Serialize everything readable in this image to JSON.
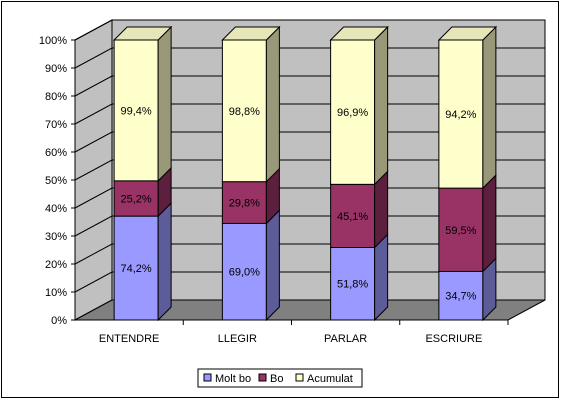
{
  "chart_data": {
    "type": "bar",
    "stacked": true,
    "three_d": true,
    "categories": [
      "ENTENDRE",
      "LLEGIR",
      "PARLAR",
      "ESCRIURE"
    ],
    "series": [
      {
        "name": "Molt bo",
        "values": [
          37.1,
          34.5,
          25.9,
          17.35
        ],
        "labels": [
          "74,2%",
          "69,0%",
          "51,8%",
          "34,7%"
        ]
      },
      {
        "name": "Bo",
        "values": [
          12.6,
          14.9,
          22.55,
          29.75
        ],
        "labels": [
          "25,2%",
          "29,8%",
          "45,1%",
          "59,5%"
        ]
      },
      {
        "name": "Acumulat",
        "values": [
          50.3,
          50.6,
          51.55,
          52.9
        ],
        "labels": [
          "99,4%",
          "98,8%",
          "96,9%",
          "94,2%"
        ]
      }
    ],
    "y_ticks": [
      "0%",
      "10%",
      "20%",
      "30%",
      "40%",
      "50%",
      "60%",
      "70%",
      "80%",
      "90%",
      "100%"
    ],
    "ylim": [
      0,
      100
    ],
    "grid": true,
    "legend_position": "bottom",
    "colors": {
      "Molt bo": "#9999ff",
      "Bo": "#993366",
      "Acumulat": "#ffffcc",
      "wall": "#c0c0c0",
      "floor": "#808080"
    }
  }
}
